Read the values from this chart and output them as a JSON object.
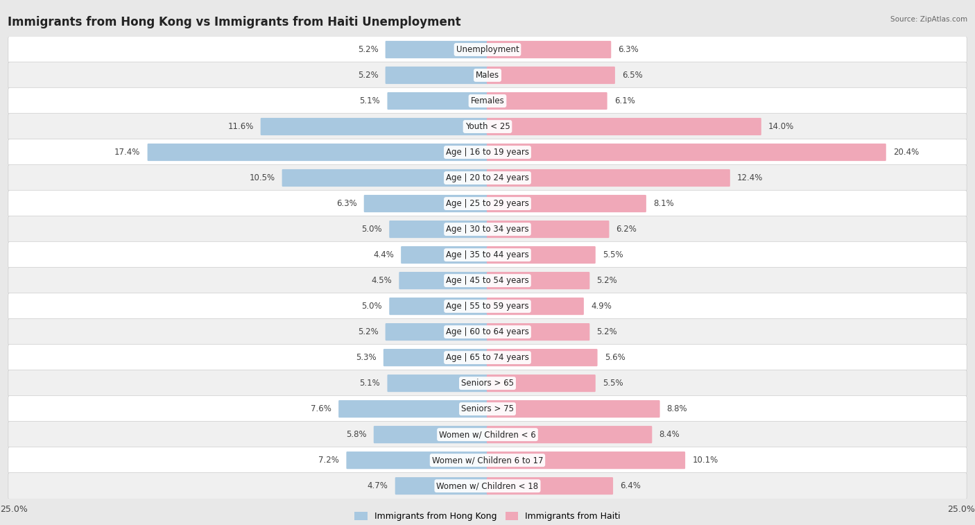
{
  "title": "Immigrants from Hong Kong vs Immigrants from Haiti Unemployment",
  "source": "Source: ZipAtlas.com",
  "categories": [
    "Unemployment",
    "Males",
    "Females",
    "Youth < 25",
    "Age | 16 to 19 years",
    "Age | 20 to 24 years",
    "Age | 25 to 29 years",
    "Age | 30 to 34 years",
    "Age | 35 to 44 years",
    "Age | 45 to 54 years",
    "Age | 55 to 59 years",
    "Age | 60 to 64 years",
    "Age | 65 to 74 years",
    "Seniors > 65",
    "Seniors > 75",
    "Women w/ Children < 6",
    "Women w/ Children 6 to 17",
    "Women w/ Children < 18"
  ],
  "hong_kong": [
    5.2,
    5.2,
    5.1,
    11.6,
    17.4,
    10.5,
    6.3,
    5.0,
    4.4,
    4.5,
    5.0,
    5.2,
    5.3,
    5.1,
    7.6,
    5.8,
    7.2,
    4.7
  ],
  "haiti": [
    6.3,
    6.5,
    6.1,
    14.0,
    20.4,
    12.4,
    8.1,
    6.2,
    5.5,
    5.2,
    4.9,
    5.2,
    5.6,
    5.5,
    8.8,
    8.4,
    10.1,
    6.4
  ],
  "hk_color": "#a8c8e0",
  "haiti_color": "#f0a8b8",
  "bg_color": "#e8e8e8",
  "row_color_odd": "#ffffff",
  "row_color_even": "#f0f0f0",
  "max_val": 25.0,
  "legend_hk": "Immigrants from Hong Kong",
  "legend_haiti": "Immigrants from Haiti",
  "title_fontsize": 12,
  "label_fontsize": 8.5,
  "value_fontsize": 8.5
}
